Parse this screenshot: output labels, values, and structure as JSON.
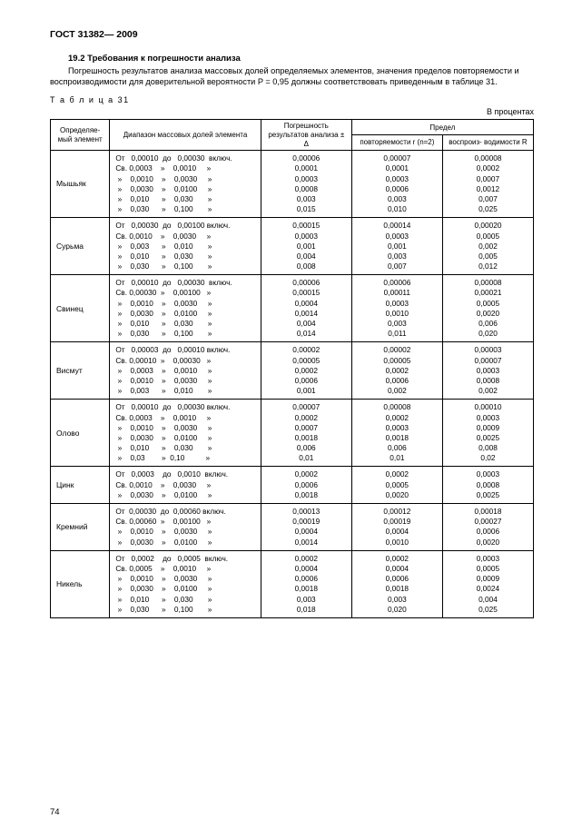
{
  "doc_id": "ГОСТ 31382— 2009",
  "section_num": "19.2",
  "section_title": "Требования к погрешности анализа",
  "paragraph": "Погрешность результатов анализа массовых долей определяемых элементов, значения пределов повторяемости и воспроизводимости для доверительной вероятности P = 0,95 должны соответствовать приведенным в таблице 31.",
  "table_label": "Т а б л и ц а 31",
  "units_label": "В процентах",
  "headers": {
    "element": "Определяе-\nмый элемент",
    "range": "Диапазон\nмассовых долей элемента",
    "error": "Погрешность\nрезультатов\nанализа ± Δ",
    "limit": "Предел",
    "repeat": "повторяемости\nr (n=2)",
    "repro": "воспроиз-\nводимости R"
  },
  "rows": [
    {
      "element": "Мышьяк",
      "range": "От   0,00010  до   0,00030  включ.\nСв. 0,0003    »    0,0010     »\n »    0,0010    »    0,0030     »\n »    0,0030    »    0,0100     »\n »    0,010      »    0,030       »\n »    0,030      »    0,100       »",
      "error": "0,00006\n0,0001\n0,0003\n0,0008\n0,003\n0,015",
      "repeat": "0,00007\n0,0001\n0,0003\n0,0006\n0,003\n0,010",
      "repro": "0,00008\n0,0002\n0,0007\n0,0012\n0,007\n0,025"
    },
    {
      "element": "Сурьма",
      "range": "От   0,00030  до   0,00100 включ.\nСв. 0,0010    »    0,0030     »\n »    0,003      »    0,010       »\n »    0,010      »    0,030       »\n »    0,030      »    0,100       »",
      "error": "0,00015\n0,0003\n0,001\n0,004\n0,008",
      "repeat": "0,00014\n0,0003\n0,001\n0,003\n0,007",
      "repro": "0,00020\n0,0005\n0,002\n0,005\n0,012"
    },
    {
      "element": "Свинец",
      "range": "От   0,00010  до   0,00030  включ.\nСв. 0,00030  »    0,00100   »\n »    0,0010    »    0,0030     »\n »    0,0030    »    0,0100     »\n »    0,010      »    0,030       »\n »    0,030      »    0,100       »",
      "error": "0,00006\n0,00015\n0,0004\n0,0014\n0,004\n0,014",
      "repeat": "0,00006\n0,00011\n0,0003\n0,0010\n0,003\n0,011",
      "repro": "0,00008\n0,00021\n0,0005\n0,0020\n0,006\n0,020"
    },
    {
      "element": "Висмут",
      "range": "От   0,00003  до   0,00010 включ.\nСв. 0,00010  »    0,00030   »\n »    0,0003    »    0,0010     »\n »    0,0010    »    0,0030     »\n »    0,003      »    0,010       »",
      "error": "0,00002\n0,00005\n0,0002\n0,0006\n0,001",
      "repeat": "0,00002\n0,00005\n0,0002\n0,0006\n0,002",
      "repro": "0,00003\n0,00007\n0,0003\n0,0008\n0,002"
    },
    {
      "element": "Олово",
      "range": "От   0,00010  до   0,00030 включ.\nСв. 0,0003    »    0,0010     »\n »    0,0010    »    0,0030     »\n »    0,0030    »    0,0100     »\n »    0,010      »    0,030       »\n »    0,03        »  0,10          »",
      "error": "0,00007\n0,0002\n0,0007\n0,0018\n0,006\n0,01",
      "repeat": "0,00008\n0,0002\n0,0003\n0,0018\n0,006\n0,01",
      "repro": "0,00010\n0,0003\n0,0009\n0,0025\n0,008\n0,02"
    },
    {
      "element": "Цинк",
      "range": "От   0,0003    до   0,0010  включ.\nСв. 0,0010    »    0,0030     »\n »    0,0030    »    0,0100     »",
      "error": "0,0002\n0,0006\n0,0018",
      "repeat": "0,0002\n0,0005\n0,0020",
      "repro": "0,0003\n0,0008\n0,0025"
    },
    {
      "element": "Кремний",
      "range": "От  0,00030  до  0,00060 включ.\nСв. 0,00060  »    0,00100   »\n »    0,0010    »    0,0030     »\n »    0,0030    »    0,0100     »",
      "error": "0,00013\n0,00019\n0,0004\n0,0014",
      "repeat": "0,00012\n0,00019\n0,0004\n0,0010",
      "repro": "0,00018\n0,00027\n0,0006\n0,0020"
    },
    {
      "element": "Никель",
      "range": "От   0,0002    до   0,0005  включ.\nСв. 0,0005    »    0,0010     »\n »    0,0010    »    0,0030     »\n »    0,0030    »    0,0100     »\n »    0,010      »    0,030       »\n »    0,030      »    0,100       »",
      "error": "0,0002\n0,0004\n0,0006\n0,0018\n0,003\n0,018",
      "repeat": "0,0002\n0,0004\n0,0006\n0,0018\n0,003\n0,020",
      "repro": "0,0003\n0,0005\n0,0009\n0,0024\n0,004\n0,025"
    }
  ],
  "page_number": "74"
}
